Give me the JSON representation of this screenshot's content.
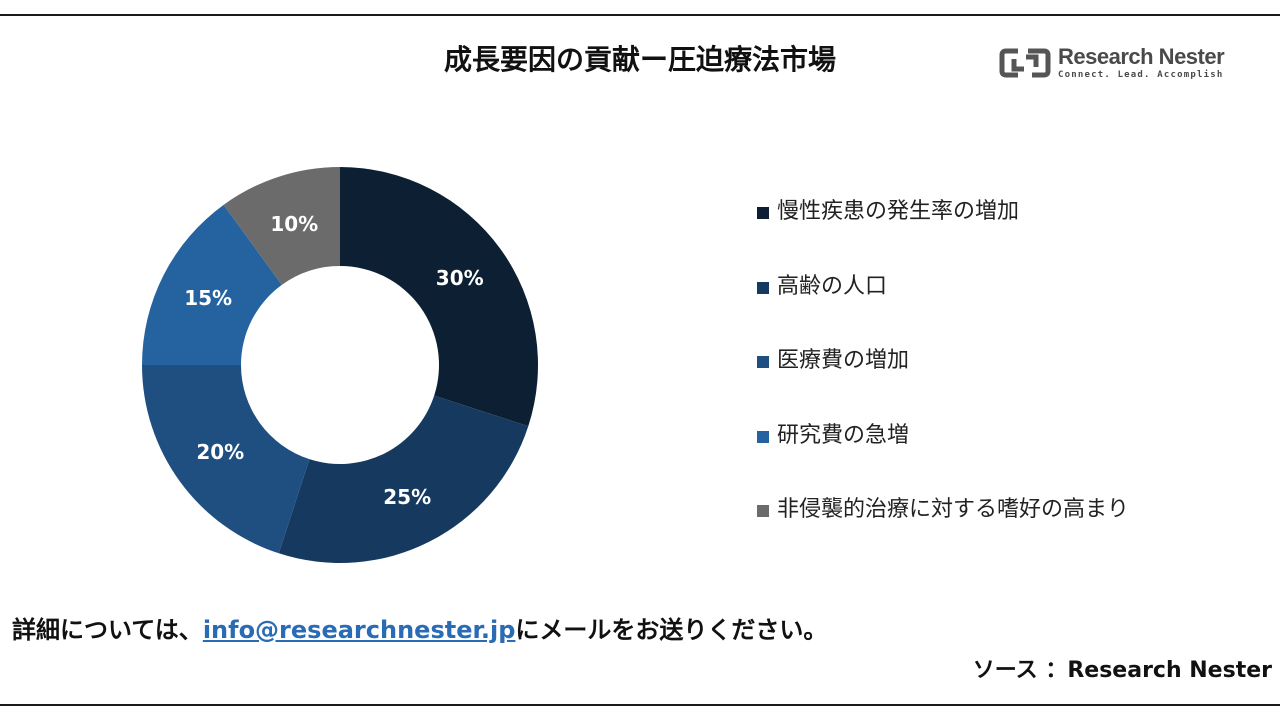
{
  "header": {
    "title": "成長要因の貢献ー圧迫療法市場"
  },
  "logo": {
    "name": "Research Nester",
    "tagline": "Connect. Lead. Accomplish"
  },
  "chart_data": {
    "type": "pie",
    "donut": true,
    "categories": [
      "慢性疾患の発生率の増加",
      "高齢の人口",
      "医療費の増加",
      "研究費の急増",
      "非侵襲的治療に対する嗜好の高まり"
    ],
    "values": [
      30,
      25,
      20,
      15,
      10
    ],
    "value_labels": [
      "30%",
      "25%",
      "20%",
      "15%",
      "10%"
    ],
    "colors": [
      "#0d1f33",
      "#163a5f",
      "#1e4f80",
      "#2563a0",
      "#6b6b6b"
    ],
    "legend": "right",
    "start": "12 o'clock",
    "direction": "clockwise"
  },
  "footer": {
    "contact_prefix": "詳細については、",
    "contact_email": "info@researchnester.jp",
    "contact_suffix": "にメールをお送りください。",
    "source": "ソース ：Research Nester"
  }
}
